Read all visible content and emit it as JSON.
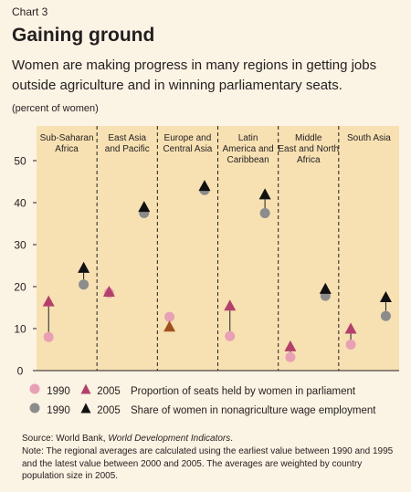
{
  "header": {
    "chart_label": "Chart 3",
    "title": "Gaining ground",
    "subtitle": "Women are making progress in many regions in getting jobs outside agriculture and in winning parliamentary seats.",
    "unit": "(percent of women)"
  },
  "legend": [
    {
      "year_a": "1990",
      "year_b": "2005",
      "text": "Proportion of seats held by women in parliament"
    },
    {
      "year_a": "1990",
      "year_b": "2005",
      "text": "Share of women in nonagriculture wage employment"
    }
  ],
  "footer": {
    "source_prefix": "Source: World Bank, ",
    "source_italic": "World Development Indicators",
    "source_suffix": ".",
    "note": "Note: The regional averages are calculated using the earliest value between 1990 and 1995 and the latest value between 2000 and 2005. The averages are weighted by country population size in 2005."
  },
  "colors": {
    "background": "#fbf3e3",
    "panel": "#f7e1b3",
    "parliament_1990": "#e8a0b4",
    "parliament_2005": "#b3406b",
    "parliament_2005_decline": "#a0521d",
    "wage_1990": "#8c8c8c",
    "wage_2005": "#111111"
  },
  "chart_data": {
    "type": "scatter",
    "ylim": [
      0,
      50
    ],
    "yticks": [
      "0",
      "10",
      "20",
      "30",
      "40",
      "50"
    ],
    "categories": [
      "Sub-Saharan Africa",
      "East Asia and Pacific",
      "Europe and Central Asia",
      "Latin America and Caribbean",
      "Middle East and North Africa",
      "South Asia"
    ],
    "category_labels": [
      [
        "Sub-Saharan",
        "Africa"
      ],
      [
        "East Asia",
        "and Pacific"
      ],
      [
        "Europe and",
        "Central Asia"
      ],
      [
        "Latin",
        "America and",
        "Caribbean"
      ],
      [
        "Middle",
        "East and North",
        "Africa"
      ],
      [
        "South Asia"
      ]
    ],
    "series": [
      {
        "name": "Proportion of seats held by women in parliament (1990)",
        "values": [
          8,
          18.5,
          12.8,
          8.2,
          3.2,
          6.2
        ]
      },
      {
        "name": "Proportion of seats held by women in parliament (2005)",
        "values": [
          16.5,
          18.8,
          10.5,
          15.5,
          5.8,
          10
        ]
      },
      {
        "name": "Share of women in nonagriculture wage employment (1990)",
        "values": [
          20.5,
          37.5,
          43,
          37.5,
          17.8,
          13
        ]
      },
      {
        "name": "Share of women in nonagriculture wage employment (2005)",
        "values": [
          24.5,
          39,
          44,
          42,
          19.5,
          17.5
        ]
      }
    ]
  }
}
